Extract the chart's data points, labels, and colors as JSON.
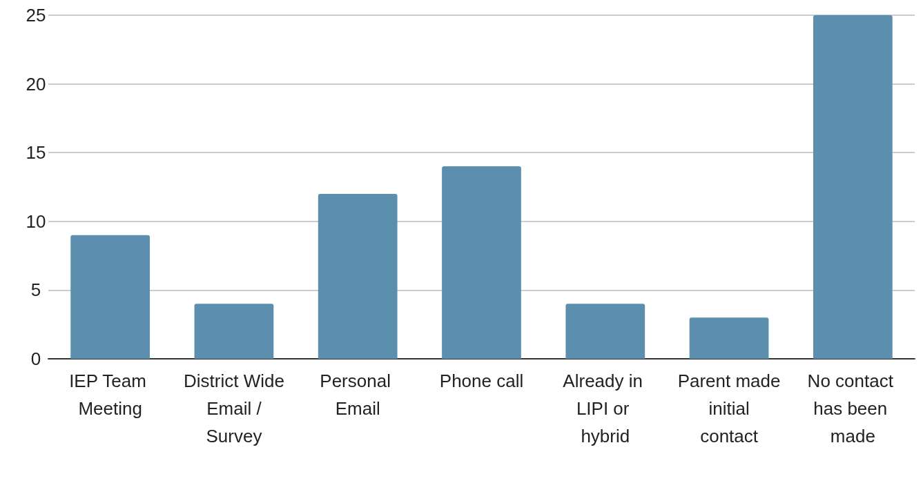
{
  "chart_data": {
    "type": "bar",
    "categories": [
      "IEP Team Meeting",
      "District Wide Email / Survey",
      "Personal Email",
      "Phone call",
      "Already in LIPI or hybrid",
      "Parent made initial contact",
      "No contact has been made"
    ],
    "values": [
      9,
      4,
      12,
      14,
      4,
      3,
      25
    ],
    "color": "#5b8fad",
    "ylim": [
      0,
      25
    ],
    "yticks": [
      0,
      5,
      10,
      15,
      20,
      25
    ],
    "grid": "y"
  }
}
